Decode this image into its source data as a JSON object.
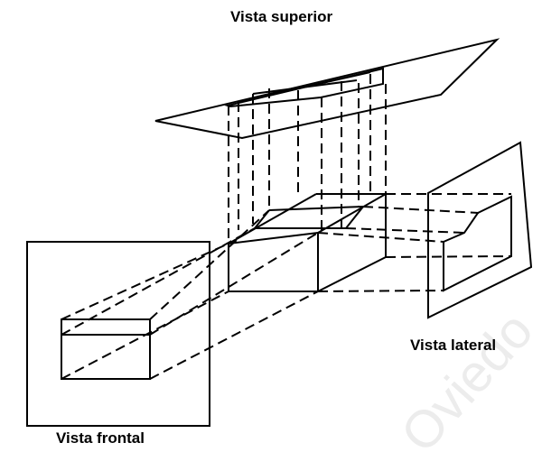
{
  "labels": {
    "top": "Vista superior",
    "lateral": "Vista lateral",
    "front": "Vista frontal"
  },
  "watermark": "Oviedo",
  "colors": {
    "line": "#000000",
    "background": "#ffffff",
    "watermark": "#ececec"
  }
}
